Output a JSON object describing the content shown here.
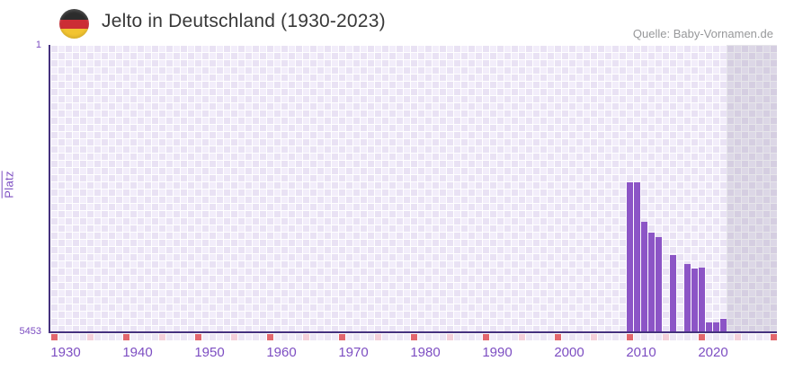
{
  "header": {
    "title": "Jelto in Deutschland (1930-2023)",
    "flag_icon": "germany-flag-roundel",
    "source": "Quelle: Baby-Vornamen.de"
  },
  "chart_data": {
    "type": "bar",
    "title": "Jelto in Deutschland (1930-2023)",
    "xlabel": "",
    "ylabel": "Platz",
    "y_axis": {
      "top_label": "1",
      "bottom_label": "5453",
      "min": 1,
      "max": 5453,
      "inverted": true
    },
    "x_axis": {
      "min_year": 1930,
      "max_year": 2023,
      "tick_years": [
        1930,
        1940,
        1950,
        1960,
        1970,
        1980,
        1990,
        2000,
        2010,
        2020
      ]
    },
    "points": [
      {
        "year": 2008,
        "platz": 2610
      },
      {
        "year": 2009,
        "platz": 2610
      },
      {
        "year": 2010,
        "platz": 3350
      },
      {
        "year": 2011,
        "platz": 3570
      },
      {
        "year": 2012,
        "platz": 3650
      },
      {
        "year": 2014,
        "platz": 3990
      },
      {
        "year": 2016,
        "platz": 4160
      },
      {
        "year": 2017,
        "platz": 4250
      },
      {
        "year": 2018,
        "platz": 4230
      },
      {
        "year": 2019,
        "platz": 5270
      },
      {
        "year": 2020,
        "platz": 5270
      },
      {
        "year": 2021,
        "platz": 5190
      }
    ],
    "shaded_no_data_band": {
      "from_year": 2022,
      "to_year": 2023
    },
    "grid": true,
    "legend_position": "none",
    "colors": {
      "bar": "#8c55c6",
      "axis_line": "#45317e",
      "tick_label": "#7d4ec2",
      "checker_light": "#f2edfa",
      "checker_dark": "#e9e2f4",
      "no_data_band": "rgba(140,137,158,0.22)",
      "decade_marker": "#e2666d",
      "half_decade_marker": "#f4cfd9",
      "title_text": "#383838",
      "source_text": "#97989a",
      "flag_black": "#2c2c2c",
      "flag_red": "#cc2d35",
      "flag_gold": "#f2c431"
    }
  }
}
